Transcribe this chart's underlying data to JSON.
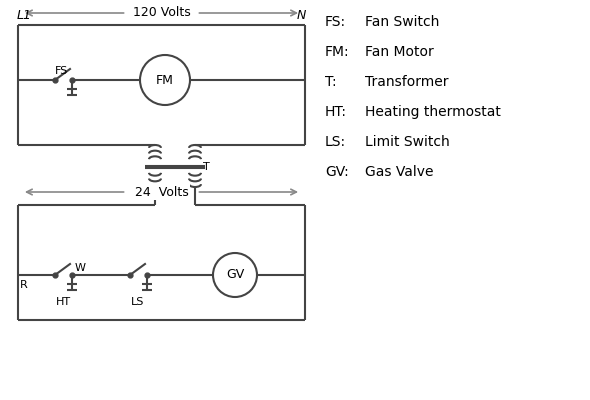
{
  "bg_color": "#ffffff",
  "line_color": "#444444",
  "text_color": "#000000",
  "legend_items": [
    [
      "FS:",
      "Fan Switch"
    ],
    [
      "FM:",
      "Fan Motor"
    ],
    [
      "T:",
      "Transformer"
    ],
    [
      "HT:",
      "Heating thermostat"
    ],
    [
      "LS:",
      "Limit Switch"
    ],
    [
      "GV:",
      "Gas Valve"
    ]
  ],
  "L1_label": "L1",
  "N_label": "N",
  "v120_label": "120 Volts",
  "v24_label": "24  Volts",
  "T_label": "T",
  "R_label": "R",
  "W_label": "W",
  "HT_label": "HT",
  "LS_label": "LS",
  "FS_label": "FS",
  "FM_label": "FM",
  "GV_label": "GV"
}
